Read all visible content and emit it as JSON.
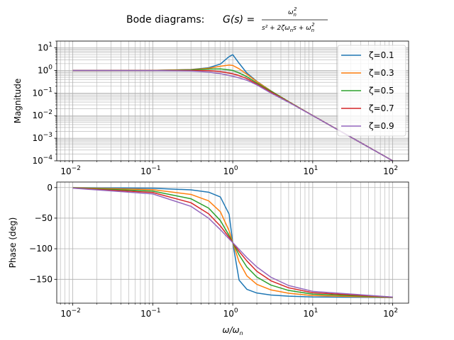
{
  "figure": {
    "title_prefix": "Bode diagrams: ",
    "title_lhs": "G(s) = ",
    "title_numerator": "ω",
    "title_numerator_sub": "n",
    "title_numerator_sup": "2",
    "title_denominator": "s² + 2ζω",
    "title_denominator_sub1": "n",
    "title_denominator_tail": "s + ω",
    "title_denominator_sub2": "n",
    "title_denominator_sup2": "2"
  },
  "chart_data": [
    {
      "type": "line",
      "name": "magnitude",
      "xscale": "log",
      "yscale": "log",
      "xlim": [
        0.0063,
        158
      ],
      "ylim": [
        0.0001,
        20
      ],
      "ylabel": "Magnitude",
      "xlabel": "",
      "grid": "both (major and minor)",
      "legend": "upper right",
      "x_ticks": [
        0.01,
        0.1,
        1,
        10,
        100
      ],
      "y_ticks": [
        0.0001,
        0.001,
        0.01,
        0.1,
        1,
        10
      ],
      "x_tick_labels": [
        [
          "10",
          "−2"
        ],
        [
          "10",
          "−1"
        ],
        [
          "10",
          "0"
        ],
        [
          "10",
          "1"
        ],
        [
          "10",
          "2"
        ]
      ],
      "y_tick_labels": [
        [
          "10",
          "−4"
        ],
        [
          "10",
          "−3"
        ],
        [
          "10",
          "−2"
        ],
        [
          "10",
          "−1"
        ],
        [
          "10",
          "0"
        ],
        [
          "10",
          "1"
        ]
      ],
      "x": [
        0.01,
        0.1,
        0.3,
        0.5,
        0.7,
        0.9,
        1.0,
        1.2,
        1.5,
        2,
        3,
        5,
        10,
        100
      ],
      "series": [
        {
          "name": "ζ=0.1",
          "color": "#1f77b4",
          "values": [
            1.0,
            1.01,
            1.1,
            1.32,
            1.92,
            4.09,
            5.0,
            2.09,
            0.77,
            0.33,
            0.125,
            0.042,
            0.0101,
            0.0001
          ]
        },
        {
          "name": "ζ=0.3",
          "color": "#ff7f0e",
          "values": [
            1.0,
            1.01,
            1.08,
            1.25,
            1.54,
            1.73,
            1.67,
            1.19,
            0.68,
            0.32,
            0.124,
            0.042,
            0.0101,
            0.0001
          ]
        },
        {
          "name": "ζ=0.5",
          "color": "#2ca02c",
          "values": [
            1.0,
            1.0,
            1.05,
            1.15,
            1.17,
            1.06,
            1.0,
            0.78,
            0.53,
            0.28,
            0.12,
            0.041,
            0.0101,
            0.0001
          ]
        },
        {
          "name": "ζ=0.7",
          "color": "#d62728",
          "values": [
            1.0,
            1.0,
            1.0,
            0.99,
            0.89,
            0.77,
            0.71,
            0.59,
            0.44,
            0.25,
            0.11,
            0.04,
            0.0101,
            0.0001
          ]
        },
        {
          "name": "ζ=0.9",
          "color": "#9467bd",
          "values": [
            1.0,
            0.99,
            0.95,
            0.85,
            0.72,
            0.6,
            0.556,
            0.47,
            0.37,
            0.23,
            0.1,
            0.039,
            0.01,
            0.0001
          ]
        }
      ]
    },
    {
      "type": "line",
      "name": "phase",
      "xscale": "log",
      "yscale": "linear",
      "xlim": [
        0.0063,
        158
      ],
      "ylim": [
        -189,
        9
      ],
      "ylabel": "Phase (deg)",
      "xlabel": "ω/ω",
      "xlabel_sub": "n",
      "grid": "both (major and minor x)",
      "x_ticks": [
        0.01,
        0.1,
        1,
        10,
        100
      ],
      "x_tick_labels": [
        [
          "10",
          "−2"
        ],
        [
          "10",
          "−1"
        ],
        [
          "10",
          "0"
        ],
        [
          "10",
          "1"
        ],
        [
          "10",
          "2"
        ]
      ],
      "y_ticks": [
        0,
        -50,
        -100,
        -150
      ],
      "y_tick_labels": [
        "0",
        "−50",
        "−100",
        "−150"
      ],
      "x": [
        0.01,
        0.1,
        0.3,
        0.5,
        0.7,
        0.9,
        1.0,
        1.2,
        1.5,
        2,
        3,
        5,
        10,
        100
      ],
      "series": [
        {
          "name": "ζ=0.1",
          "color": "#1f77b4",
          "values": [
            -0.1,
            -1.2,
            -3.8,
            -7.6,
            -15.4,
            -43.5,
            -90,
            -151.4,
            -166.3,
            -172.4,
            -175.7,
            -177.6,
            -178.8,
            -179.9
          ]
        },
        {
          "name": "ζ=0.3",
          "color": "#ff7f0e",
          "values": [
            -0.3,
            -3.5,
            -11.2,
            -21.8,
            -39.5,
            -70.5,
            -90,
            -121.4,
            -144.3,
            -158.2,
            -167.3,
            -172.8,
            -176.5,
            -179.7
          ]
        },
        {
          "name": "ζ=0.5",
          "color": "#2ca02c",
          "values": [
            -0.6,
            -5.8,
            -18.3,
            -33.7,
            -53.9,
            -78.3,
            -90,
            -110.1,
            -129.8,
            -146.3,
            -159.4,
            -168.2,
            -174.2,
            -179.4
          ]
        },
        {
          "name": "ζ=0.7",
          "color": "#d62728",
          "values": [
            -0.8,
            -8.1,
            -24.8,
            -43.0,
            -62.8,
            -81.4,
            -90,
            -104.5,
            -119.9,
            -136.9,
            -152.4,
            -163.9,
            -171.9,
            -179.2
          ]
        },
        {
          "name": "ζ=0.9",
          "color": "#9467bd",
          "values": [
            -1.0,
            -10.4,
            -30.7,
            -50.2,
            -68.9,
            -83.9,
            -90,
            -101.0,
            -114.5,
            -129.8,
            -146.6,
            -160.2,
            -169.7,
            -179.0
          ]
        }
      ]
    }
  ]
}
